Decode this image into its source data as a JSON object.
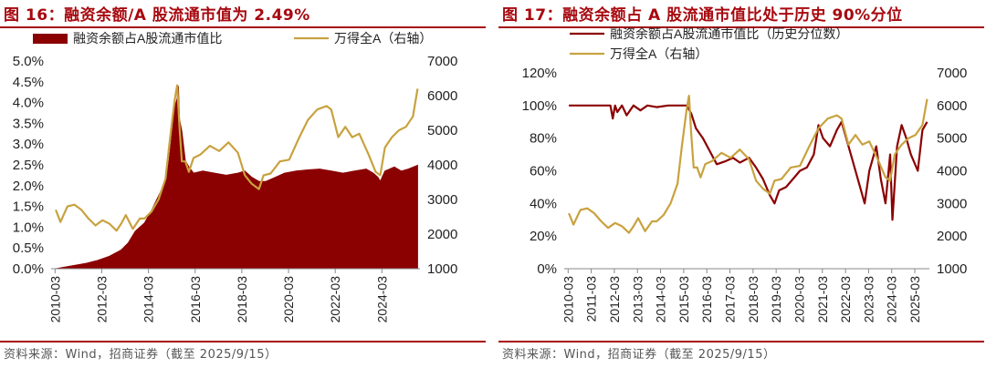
{
  "panels": [
    {
      "title": "图 16：融资余额/A 股流通市值为 2.49%",
      "source": "资料来源：Wind，招商证券（截至 2025/9/15）",
      "chart_data": {
        "type": "area",
        "series": [
          {
            "name": "融资余额占A股流通市值比",
            "axis": "left",
            "kind": "area",
            "color": "#8b0000",
            "x": [
              2010.2,
              2010.5,
              2011.0,
              2011.5,
              2012.0,
              2012.5,
              2013.0,
              2013.3,
              2013.6,
              2014.0,
              2014.3,
              2014.6,
              2014.9,
              2015.05,
              2015.15,
              2015.3,
              2015.4,
              2015.45,
              2015.5,
              2015.6,
              2015.75,
              2015.9,
              2016.1,
              2016.5,
              2017.0,
              2017.5,
              2018.0,
              2018.3,
              2018.6,
              2018.9,
              2019.2,
              2019.6,
              2020.0,
              2020.5,
              2021.0,
              2021.5,
              2022.0,
              2022.5,
              2023.0,
              2023.5,
              2023.8,
              2024.0,
              2024.1,
              2024.3,
              2024.5,
              2024.7,
              2025.0,
              2025.3,
              2025.7
            ],
            "values": [
              0.0,
              0.03,
              0.08,
              0.13,
              0.2,
              0.3,
              0.45,
              0.62,
              0.9,
              1.1,
              1.4,
              1.75,
              2.1,
              2.6,
              3.1,
              3.9,
              4.1,
              4.4,
              3.6,
              3.3,
              2.6,
              2.45,
              2.3,
              2.35,
              2.3,
              2.25,
              2.3,
              2.35,
              2.2,
              2.1,
              2.1,
              2.2,
              2.3,
              2.35,
              2.38,
              2.4,
              2.35,
              2.3,
              2.35,
              2.4,
              2.3,
              2.2,
              2.1,
              2.35,
              2.4,
              2.45,
              2.35,
              2.4,
              2.49
            ]
          },
          {
            "name": "万得全A（右轴）",
            "axis": "right",
            "kind": "line",
            "color": "#c8a23f",
            "x": [
              2010.2,
              2010.4,
              2010.7,
              2011.0,
              2011.3,
              2011.6,
              2011.9,
              2012.2,
              2012.5,
              2012.8,
              2013.0,
              2013.2,
              2013.5,
              2013.8,
              2014.0,
              2014.3,
              2014.6,
              2014.9,
              2015.1,
              2015.3,
              2015.4,
              2015.5,
              2015.6,
              2015.75,
              2015.9,
              2016.1,
              2016.4,
              2016.8,
              2017.2,
              2017.6,
              2018.0,
              2018.3,
              2018.6,
              2018.9,
              2019.1,
              2019.4,
              2019.8,
              2020.2,
              2020.6,
              2021.0,
              2021.4,
              2021.8,
              2022.0,
              2022.3,
              2022.6,
              2022.9,
              2023.2,
              2023.6,
              2023.9,
              2024.1,
              2024.3,
              2024.6,
              2024.9,
              2025.2,
              2025.5,
              2025.7
            ],
            "values": [
              2700,
              2350,
              2800,
              2850,
              2700,
              2450,
              2250,
              2400,
              2300,
              2100,
              2300,
              2550,
              2150,
              2450,
              2450,
              2650,
              3000,
              3600,
              4800,
              5900,
              6300,
              5100,
              4100,
              4100,
              3800,
              4200,
              4300,
              4550,
              4400,
              4650,
              4350,
              3700,
              3450,
              3300,
              3700,
              3750,
              4100,
              4150,
              4750,
              5300,
              5600,
              5700,
              5600,
              4800,
              5100,
              4800,
              4900,
              4300,
              3800,
              3700,
              4500,
              4800,
              5000,
              5100,
              5400,
              6200
            ]
          }
        ],
        "x_ticks": [
          "2010-03",
          "2012-03",
          "2014-03",
          "2016-03",
          "2018-03",
          "2020-03",
          "2022-03",
          "2024-03"
        ],
        "x_tick_values": [
          2010.17,
          2012.17,
          2014.17,
          2016.17,
          2018.17,
          2020.17,
          2022.17,
          2024.17
        ],
        "xlim": [
          2010.0,
          2025.8
        ],
        "ylim_left": [
          0,
          5
        ],
        "ylim_right": [
          1000,
          7000
        ],
        "y_left_ticks": [
          "0.0%",
          "0.5%",
          "1.0%",
          "1.5%",
          "2.0%",
          "2.5%",
          "3.0%",
          "3.5%",
          "4.0%",
          "4.5%",
          "5.0%"
        ],
        "y_right_ticks": [
          "1000",
          "2000",
          "3000",
          "4000",
          "5000",
          "6000",
          "7000"
        ],
        "legend": [
          "融资余额占A股流通市值比",
          "万得全A（右轴）"
        ],
        "legend_position": "top"
      }
    },
    {
      "title": "图 17：融资余额占 A 股流通市值比处于历史 90%分位",
      "source": "资料来源：Wind，招商证券（截至 2025/9/15）",
      "chart_data": {
        "type": "line",
        "series": [
          {
            "name": "融资余额占A股流通市值比（历史分位数）",
            "axis": "left",
            "kind": "line",
            "color": "#8b0000",
            "x": [
              2010.2,
              2012.0,
              2012.1,
              2012.2,
              2012.3,
              2012.5,
              2012.7,
              2013.0,
              2013.3,
              2013.6,
              2014.0,
              2014.5,
              2015.0,
              2015.2,
              2015.3,
              2015.5,
              2015.7,
              2016.0,
              2016.3,
              2016.6,
              2017.0,
              2017.3,
              2017.6,
              2018.0,
              2018.3,
              2018.6,
              2018.9,
              2019.1,
              2019.3,
              2019.6,
              2019.9,
              2020.2,
              2020.5,
              2020.8,
              2021.0,
              2021.2,
              2021.5,
              2021.8,
              2022.0,
              2022.2,
              2022.5,
              2022.8,
              2023.0,
              2023.2,
              2023.5,
              2023.7,
              2023.9,
              2024.1,
              2024.2,
              2024.4,
              2024.6,
              2024.8,
              2025.0,
              2025.3,
              2025.5,
              2025.7
            ],
            "values": [
              100,
              100,
              92,
              100,
              96,
              100,
              94,
              100,
              97,
              100,
              99,
              100,
              100,
              100,
              100,
              95,
              86,
              80,
              72,
              64,
              66,
              68,
              65,
              68,
              62,
              55,
              45,
              40,
              48,
              50,
              55,
              60,
              62,
              70,
              88,
              80,
              75,
              85,
              90,
              80,
              65,
              50,
              40,
              60,
              75,
              55,
              40,
              70,
              30,
              75,
              88,
              80,
              70,
              60,
              85,
              90
            ]
          },
          {
            "name": "万得全A（右轴）",
            "axis": "right",
            "kind": "line",
            "color": "#c8a23f",
            "x": [
              2010.2,
              2010.4,
              2010.7,
              2011.0,
              2011.3,
              2011.6,
              2011.9,
              2012.2,
              2012.5,
              2012.8,
              2013.0,
              2013.2,
              2013.5,
              2013.8,
              2014.0,
              2014.3,
              2014.6,
              2014.9,
              2015.1,
              2015.3,
              2015.4,
              2015.5,
              2015.6,
              2015.75,
              2015.9,
              2016.1,
              2016.4,
              2016.8,
              2017.2,
              2017.6,
              2018.0,
              2018.3,
              2018.6,
              2018.9,
              2019.1,
              2019.4,
              2019.8,
              2020.2,
              2020.6,
              2021.0,
              2021.4,
              2021.8,
              2022.0,
              2022.3,
              2022.6,
              2022.9,
              2023.2,
              2023.6,
              2023.9,
              2024.1,
              2024.3,
              2024.6,
              2024.9,
              2025.2,
              2025.5,
              2025.7
            ],
            "values": [
              2700,
              2350,
              2800,
              2850,
              2700,
              2450,
              2250,
              2400,
              2300,
              2100,
              2300,
              2550,
              2150,
              2450,
              2450,
              2650,
              3000,
              3600,
              4800,
              5900,
              6300,
              5100,
              4100,
              4100,
              3800,
              4200,
              4300,
              4550,
              4400,
              4650,
              4350,
              3700,
              3450,
              3300,
              3700,
              3750,
              4100,
              4150,
              4750,
              5300,
              5600,
              5700,
              5600,
              4800,
              5100,
              4800,
              4900,
              4300,
              3800,
              3700,
              4500,
              4800,
              5000,
              5100,
              5400,
              6200
            ]
          }
        ],
        "x_ticks": [
          "2010-03",
          "2011-03",
          "2012-03",
          "2013-03",
          "2014-03",
          "2015-03",
          "2016-03",
          "2017-03",
          "2018-03",
          "2019-03",
          "2020-03",
          "2021-03",
          "2022-03",
          "2023-03",
          "2024-03",
          "2025-03"
        ],
        "x_tick_values": [
          2010.17,
          2011.17,
          2012.17,
          2013.17,
          2014.17,
          2015.17,
          2016.17,
          2017.17,
          2018.17,
          2019.17,
          2020.17,
          2021.17,
          2022.17,
          2023.17,
          2024.17,
          2025.17
        ],
        "xlim": [
          2010.0,
          2025.8
        ],
        "ylim_left": [
          0,
          120
        ],
        "ylim_right": [
          1000,
          7000
        ],
        "y_left_ticks": [
          "0%",
          "20%",
          "40%",
          "60%",
          "80%",
          "100%",
          "120%"
        ],
        "y_right_ticks": [
          "1000",
          "2000",
          "3000",
          "4000",
          "5000",
          "6000",
          "7000"
        ],
        "legend": [
          "融资余额占A股流通市值比（历史分位数）",
          "万得全A（右轴）"
        ],
        "legend_position": "top-left"
      }
    }
  ]
}
